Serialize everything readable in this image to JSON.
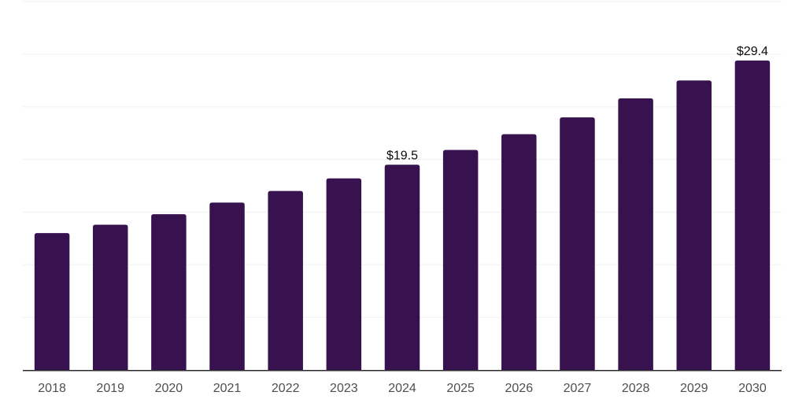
{
  "page": {
    "background_color": "#FFFFFF"
  },
  "chart_data": {
    "type": "bar",
    "title": "",
    "xlabel": "",
    "ylabel": "",
    "categories": [
      "2018",
      "2019",
      "2020",
      "2021",
      "2022",
      "2023",
      "2024",
      "2025",
      "2026",
      "2027",
      "2028",
      "2029",
      "2030"
    ],
    "values": [
      13.0,
      13.8,
      14.8,
      15.9,
      17.0,
      18.2,
      19.5,
      20.9,
      22.4,
      24.0,
      25.8,
      27.5,
      29.4
    ],
    "data_labels": [
      {
        "category": "2024",
        "label": "$19.5"
      },
      {
        "category": "2030",
        "label": "$29.4"
      }
    ],
    "ylim": [
      0,
      35
    ],
    "grid_step": 5,
    "grid": true,
    "legend": false,
    "y_axis_tick_labels_visible": false,
    "bar_color": "#38124E",
    "grid_color": "#F0F0F0",
    "axis_line_color": "#2B2B2B",
    "tick_label_color": "#4F4F4F",
    "data_label_color": "#0A0A0A"
  }
}
